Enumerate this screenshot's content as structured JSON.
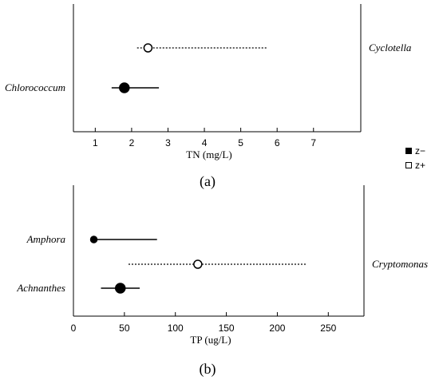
{
  "chart_data": [
    {
      "type": "scatter",
      "panel_label": "(a)",
      "xlabel": "TN (mg/L)",
      "xlim": [
        0.4,
        8.3
      ],
      "xticks": [
        "1",
        "2",
        "3",
        "4",
        "5",
        "6",
        "7"
      ],
      "xtick_values": [
        1,
        2,
        3,
        4,
        5,
        6,
        7
      ],
      "rows": [
        {
          "species": "Cyclotella",
          "side": "right",
          "point": 2.45,
          "low": 2.15,
          "high": 5.75,
          "marker": "open",
          "style": "dotted",
          "size": "medium"
        },
        {
          "species": "Chlorococcum",
          "side": "left",
          "point": 1.8,
          "low": 1.45,
          "high": 2.75,
          "marker": "filled",
          "style": "solid",
          "size": "large"
        }
      ]
    },
    {
      "type": "scatter",
      "panel_label": "(b)",
      "xlabel": "TP (ug/L)",
      "xlim": [
        0,
        285
      ],
      "xticks": [
        "0",
        "50",
        "100",
        "150",
        "200",
        "250"
      ],
      "xtick_values": [
        0,
        50,
        100,
        150,
        200,
        250
      ],
      "rows": [
        {
          "species": "Amphora",
          "side": "left",
          "point": 20,
          "low": 20,
          "high": 82,
          "marker": "filled",
          "style": "solid",
          "size": "small"
        },
        {
          "species": "Cryptomonas",
          "side": "right",
          "point": 122,
          "low": 54,
          "high": 228,
          "marker": "open",
          "style": "dotted",
          "size": "medium"
        },
        {
          "species": "Achnanthes",
          "side": "left",
          "point": 46,
          "low": 27,
          "high": 65,
          "marker": "filled",
          "style": "solid",
          "size": "large"
        }
      ]
    }
  ],
  "legend": {
    "items": [
      {
        "label": "z−",
        "marker": "filled"
      },
      {
        "label": "z+",
        "marker": "open"
      }
    ]
  }
}
